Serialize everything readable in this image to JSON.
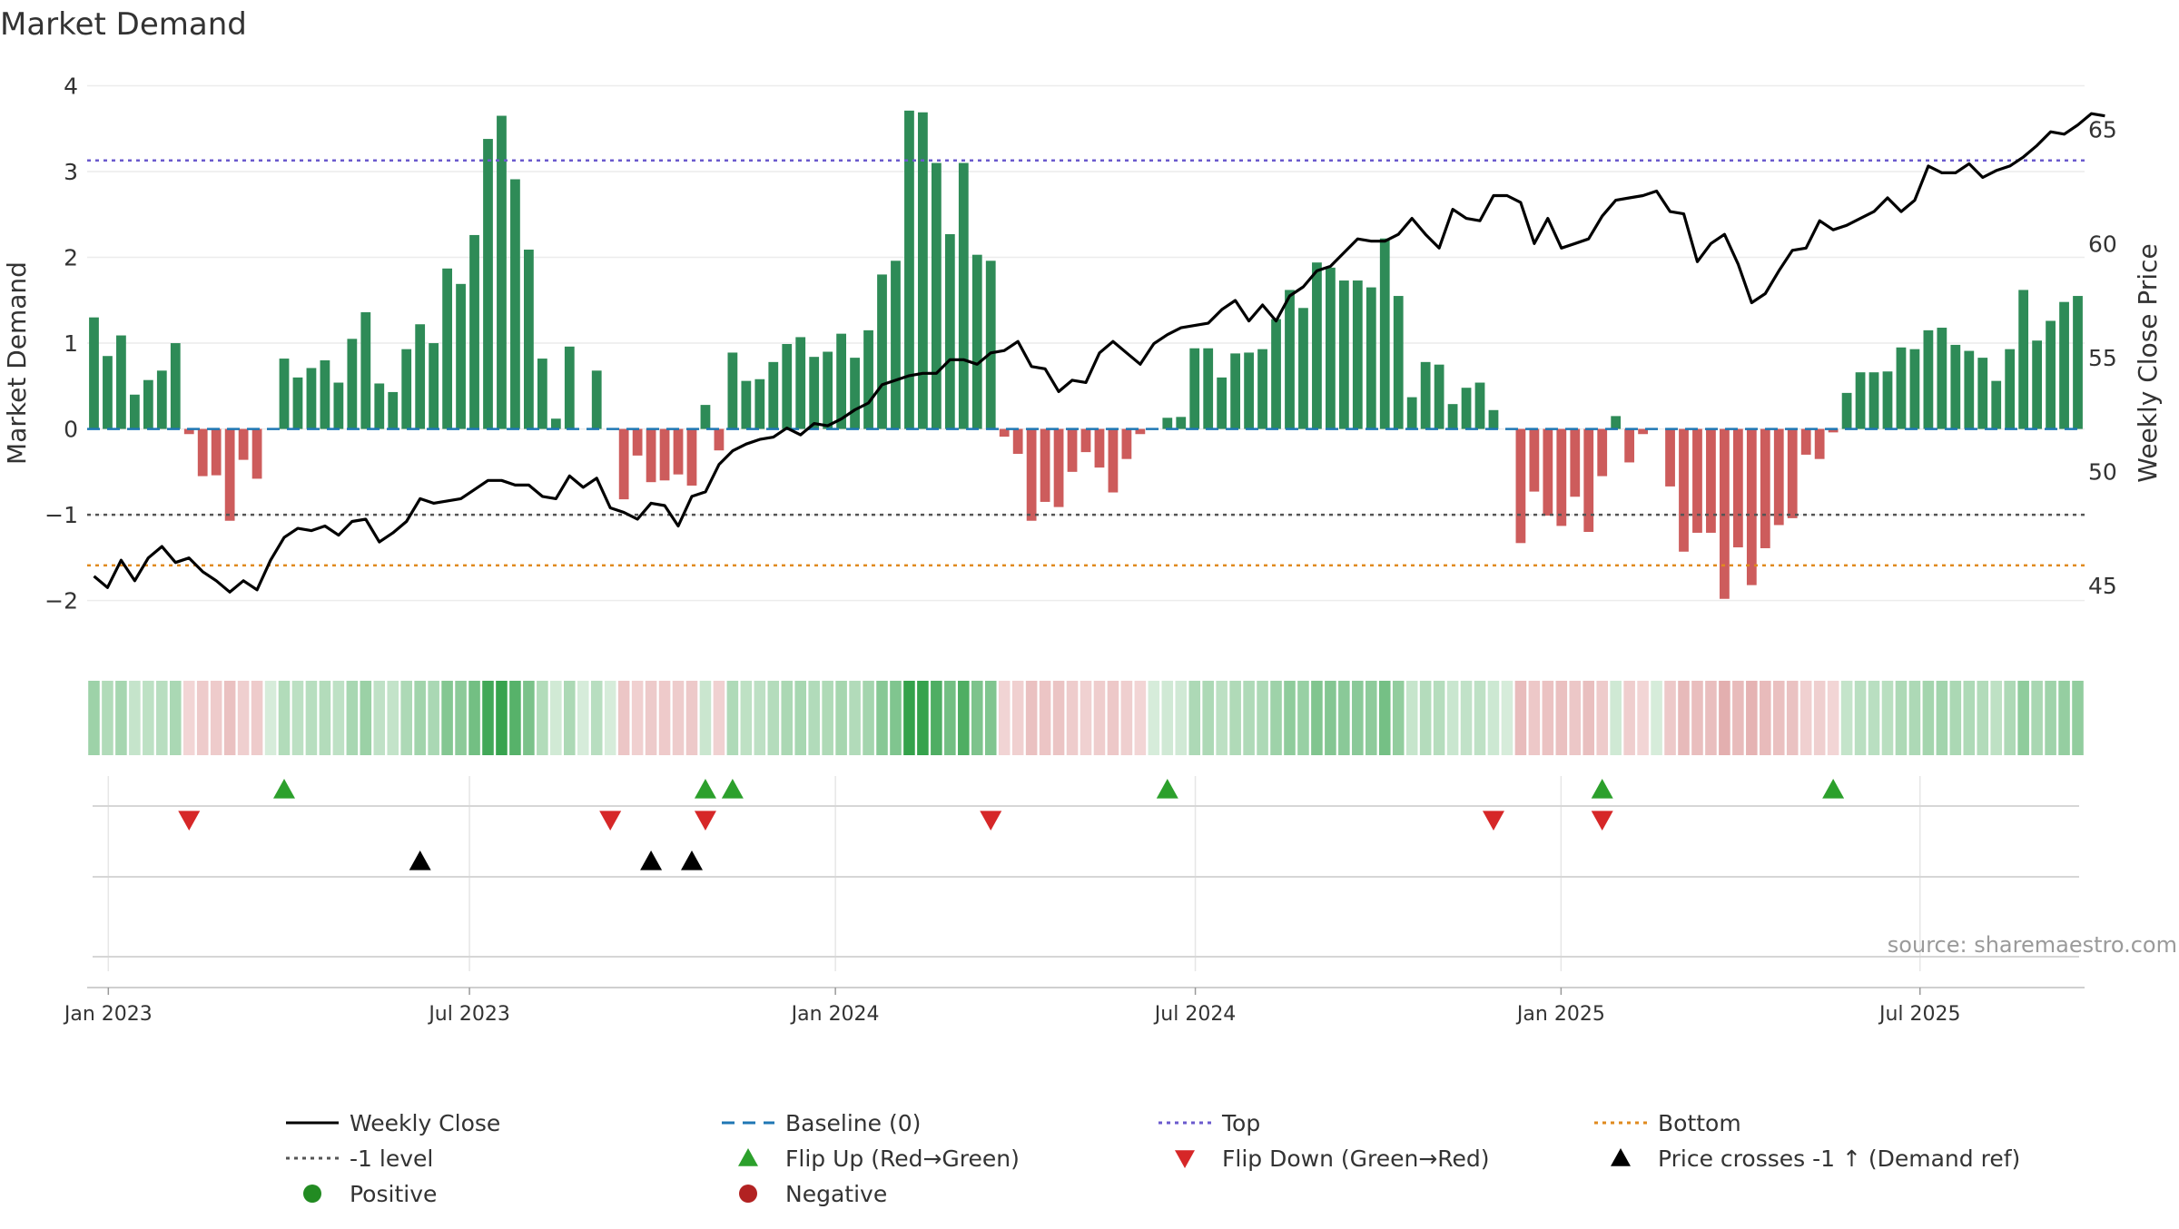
{
  "chart_data": {
    "type": "bar",
    "title": "Market Demand",
    "ylabel": "Market Demand",
    "y2label": "Weekly Close Price",
    "ylim": [
      -2.3,
      4.1
    ],
    "y2lim": [
      43.2,
      67.3
    ],
    "x_ticks": [
      "Jan 2023",
      "Jul 2023",
      "Jan 2024",
      "Jul 2024",
      "Jan 2025",
      "Jul 2025"
    ],
    "y_ticks": [
      4,
      3,
      2,
      1,
      0,
      -1,
      -2
    ],
    "y_tick_labels": [
      "4",
      "3",
      "2",
      "1",
      "0",
      "−1",
      "−2"
    ],
    "y2_ticks": [
      65,
      60,
      55,
      50,
      45
    ],
    "y2_tick_labels": [
      "65",
      "60",
      "55",
      "50",
      "45"
    ],
    "reference_lines": {
      "top": 3.13,
      "minus_one": -1,
      "bottom": -1.59,
      "baseline": 0
    },
    "colors": {
      "positive": "#2e8b57",
      "negative": "#cd5c5c",
      "top": "#6a5acd",
      "bottom": "#e08a1e",
      "minus_one": "#555555",
      "baseline": "#1f77b4",
      "price": "#000000",
      "flip_up": "#2ca02c",
      "flip_down": "#d62728",
      "cross": "#000000",
      "positive_dot": "#228b22",
      "negative_dot": "#b22222"
    },
    "demand": [
      1.3,
      0.85,
      1.09,
      0.4,
      0.57,
      0.68,
      1.0,
      -0.06,
      -0.55,
      -0.54,
      -1.07,
      -0.36,
      -0.58,
      0,
      0.82,
      0.6,
      0.71,
      0.8,
      0.54,
      1.05,
      1.36,
      0.53,
      0.43,
      0.93,
      1.22,
      1.0,
      1.87,
      1.69,
      2.26,
      3.38,
      3.65,
      2.91,
      2.09,
      0.82,
      0.12,
      0.96,
      0,
      0.68,
      0,
      -0.82,
      -0.31,
      -0.62,
      -0.6,
      -0.53,
      -0.66,
      0.28,
      -0.25,
      0.89,
      0.56,
      0.58,
      0.78,
      0.99,
      1.07,
      0.84,
      0.9,
      1.11,
      0.83,
      1.15,
      1.8,
      1.96,
      3.71,
      3.69,
      3.1,
      2.27,
      3.1,
      2.03,
      1.96,
      -0.09,
      -0.29,
      -1.07,
      -0.85,
      -0.91,
      -0.5,
      -0.27,
      -0.45,
      -0.74,
      -0.35,
      -0.06,
      0,
      0.13,
      0.14,
      0.94,
      0.94,
      0.6,
      0.88,
      0.89,
      0.93,
      1.28,
      1.62,
      1.41,
      1.94,
      1.88,
      1.73,
      1.73,
      1.65,
      2.22,
      1.55,
      0.37,
      0.78,
      0.75,
      0.29,
      0.48,
      0.54,
      0.22,
      0,
      -1.33,
      -0.73,
      -1.01,
      -1.13,
      -0.79,
      -1.2,
      -0.55,
      0.15,
      -0.39,
      -0.06,
      0,
      -0.67,
      -1.43,
      -1.21,
      -1.21,
      -1.98,
      -1.38,
      -1.82,
      -1.39,
      -1.12,
      -1.04,
      -0.3,
      -0.35,
      -0.04,
      0.42,
      0.66,
      0.66,
      0.67,
      0.95,
      0.93,
      1.15,
      1.18,
      0.98,
      0.91,
      0.83,
      0.56,
      0.93,
      1.62,
      1.03,
      1.26,
      1.48,
      1.55
    ],
    "price": [
      45.4,
      44.9,
      46.1,
      45.2,
      46.2,
      46.7,
      46.0,
      46.2,
      45.6,
      45.2,
      44.7,
      45.2,
      44.8,
      46.1,
      47.1,
      47.5,
      47.4,
      47.6,
      47.2,
      47.8,
      47.9,
      46.9,
      47.3,
      47.8,
      48.8,
      48.6,
      48.7,
      48.8,
      49.2,
      49.6,
      49.6,
      49.4,
      49.4,
      48.9,
      48.8,
      49.8,
      49.3,
      49.7,
      48.4,
      48.2,
      47.9,
      48.6,
      48.5,
      47.6,
      48.9,
      49.1,
      50.3,
      50.9,
      51.2,
      51.4,
      51.5,
      51.9,
      51.6,
      52.1,
      52.0,
      52.3,
      52.7,
      53.0,
      53.8,
      54.0,
      54.2,
      54.3,
      54.3,
      54.9,
      54.9,
      54.7,
      55.2,
      55.3,
      55.7,
      54.6,
      54.5,
      53.5,
      54.0,
      53.9,
      55.2,
      55.7,
      55.2,
      54.7,
      55.6,
      56.0,
      56.3,
      56.4,
      56.5,
      57.1,
      57.5,
      56.6,
      57.3,
      56.6,
      57.7,
      58.1,
      58.8,
      59.0,
      59.6,
      60.2,
      60.1,
      60.1,
      60.4,
      61.1,
      60.4,
      59.8,
      61.5,
      61.1,
      61.0,
      62.1,
      62.1,
      61.8,
      60.0,
      61.1,
      59.8,
      60.0,
      60.2,
      61.2,
      61.9,
      62.0,
      62.1,
      62.3,
      61.4,
      61.3,
      59.2,
      60.0,
      60.4,
      59.1,
      57.4,
      57.8,
      58.8,
      59.7,
      59.8,
      61.0,
      60.6,
      60.8,
      61.1,
      61.4,
      62.0,
      61.4,
      61.9,
      63.4,
      63.1,
      63.1,
      63.5,
      62.9,
      63.2,
      63.4,
      63.8,
      64.3,
      64.9,
      64.8,
      65.2,
      65.7,
      65.6
    ],
    "flip_up_index": [
      14,
      45,
      47,
      79,
      111,
      128
    ],
    "flip_down_index": [
      7,
      38,
      45,
      66,
      103,
      111
    ],
    "cross_up_index": [
      24,
      41,
      44
    ],
    "legend": [
      {
        "label": "Weekly Close",
        "marker": "line-solid",
        "color": "#000000"
      },
      {
        "label": "Baseline (0)",
        "marker": "line-dash",
        "color": "#1f77b4"
      },
      {
        "label": "Top",
        "marker": "line-dot",
        "color": "#6a5acd"
      },
      {
        "label": "Bottom",
        "marker": "line-dot",
        "color": "#e08a1e"
      },
      {
        "label": "-1 level",
        "marker": "line-dot",
        "color": "#555555"
      },
      {
        "label": "Flip Up (Red→Green)",
        "marker": "tri-up",
        "color": "#2ca02c"
      },
      {
        "label": "Flip Down (Green→Red)",
        "marker": "tri-down",
        "color": "#d62728"
      },
      {
        "label": "Price crosses -1 ↑ (Demand ref)",
        "marker": "tri-up",
        "color": "#000000"
      },
      {
        "label": "Positive",
        "marker": "dot",
        "color": "#228b22"
      },
      {
        "label": "Negative",
        "marker": "dot",
        "color": "#b22222"
      }
    ],
    "source": "source: sharemaestro.com"
  }
}
